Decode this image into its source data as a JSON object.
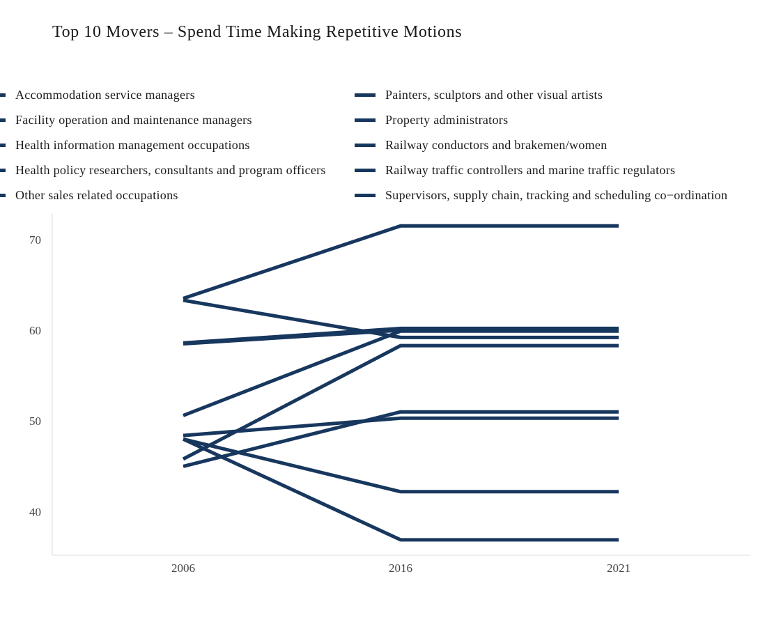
{
  "chart_data": {
    "type": "line",
    "title": "Top 10 Movers – Spend Time Making Repetitive Motions",
    "xlabel": "",
    "ylabel": "",
    "x": [
      "2006",
      "2016",
      "2021"
    ],
    "ylim": [
      35.2,
      72.9
    ],
    "yticks": [
      40,
      50,
      60,
      70
    ],
    "grid": false,
    "legend_position": "top",
    "line_color": "#17375e",
    "series": [
      {
        "name": "Accommodation service managers",
        "values": [
          63.5,
          71.5,
          71.5
        ]
      },
      {
        "name": "Facility operation and maintenance managers",
        "values": [
          63.3,
          59.2,
          59.2
        ]
      },
      {
        "name": "Health information management occupations",
        "values": [
          58.6,
          60.2,
          60.2
        ]
      },
      {
        "name": "Health policy researchers, consultants and program officers",
        "values": [
          50.6,
          59.9,
          59.9
        ]
      },
      {
        "name": "Other sales related occupations",
        "values": [
          45.8,
          58.3,
          58.3
        ]
      },
      {
        "name": "Painters, sculptors and other visual artists",
        "values": [
          48.4,
          50.3,
          50.3
        ]
      },
      {
        "name": "Property administrators",
        "values": [
          45.0,
          51.0,
          51.0
        ]
      },
      {
        "name": "Railway conductors and brakemen/women",
        "values": [
          48.0,
          42.2,
          42.2
        ]
      },
      {
        "name": "Railway traffic controllers and marine traffic regulators",
        "values": [
          48.0,
          36.9,
          36.9
        ]
      },
      {
        "name": "Supervisors, supply chain, tracking and scheduling co−ordination",
        "values": [
          58.5,
          60.0,
          60.0
        ]
      }
    ]
  }
}
